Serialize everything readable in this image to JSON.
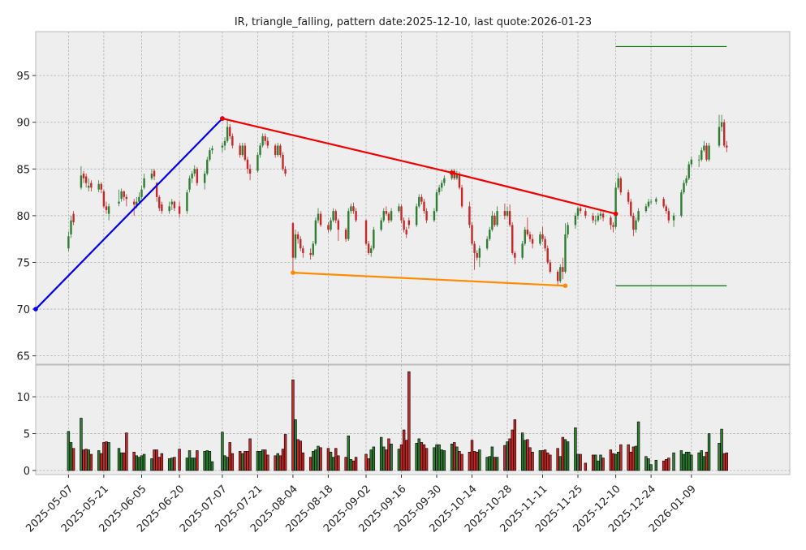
{
  "chart_data": {
    "type": "candlestick",
    "title": "IR, triangle_falling, pattern date:2025-12-10, last quote:2026-01-23",
    "xlim": [
      "2025-04-24",
      "2026-02-17"
    ],
    "xticks": [
      "2025-05-07",
      "2025-05-21",
      "2025-06-05",
      "2025-06-20",
      "2025-07-07",
      "2025-07-21",
      "2025-08-04",
      "2025-08-18",
      "2025-09-02",
      "2025-09-16",
      "2025-09-30",
      "2025-10-14",
      "2025-10-28",
      "2025-11-11",
      "2025-11-25",
      "2025-12-10",
      "2025-12-24",
      "2026-01-09"
    ],
    "ylim": [
      64.1,
      99.7
    ],
    "yticks": [
      65,
      70,
      75,
      80,
      85,
      90,
      95
    ],
    "volume_ylim": [
      -0.55,
      14.3
    ],
    "volume_yticks": [
      0,
      5,
      10
    ],
    "grid": true,
    "up_color": "#2e7d32",
    "down_color": "#c62828",
    "x": [
      "2025-05-07",
      "2025-05-08",
      "2025-05-09",
      "2025-05-12",
      "2025-05-13",
      "2025-05-14",
      "2025-05-15",
      "2025-05-16",
      "2025-05-19",
      "2025-05-20",
      "2025-05-21",
      "2025-05-22",
      "2025-05-23",
      "2025-05-27",
      "2025-05-28",
      "2025-05-29",
      "2025-05-30",
      "2025-06-02",
      "2025-06-03",
      "2025-06-04",
      "2025-06-05",
      "2025-06-06",
      "2025-06-09",
      "2025-06-10",
      "2025-06-11",
      "2025-06-12",
      "2025-06-13",
      "2025-06-16",
      "2025-06-17",
      "2025-06-18",
      "2025-06-20",
      "2025-06-23",
      "2025-06-24",
      "2025-06-25",
      "2025-06-26",
      "2025-06-27",
      "2025-06-30",
      "2025-07-01",
      "2025-07-02",
      "2025-07-03",
      "2025-07-07",
      "2025-07-08",
      "2025-07-09",
      "2025-07-10",
      "2025-07-11",
      "2025-07-14",
      "2025-07-15",
      "2025-07-16",
      "2025-07-17",
      "2025-07-18",
      "2025-07-21",
      "2025-07-22",
      "2025-07-23",
      "2025-07-24",
      "2025-07-25",
      "2025-07-28",
      "2025-07-29",
      "2025-07-30",
      "2025-07-31",
      "2025-08-01",
      "2025-08-04",
      "2025-08-05",
      "2025-08-06",
      "2025-08-07",
      "2025-08-08",
      "2025-08-11",
      "2025-08-12",
      "2025-08-13",
      "2025-08-14",
      "2025-08-15",
      "2025-08-18",
      "2025-08-19",
      "2025-08-20",
      "2025-08-21",
      "2025-08-22",
      "2025-08-25",
      "2025-08-26",
      "2025-08-27",
      "2025-08-28",
      "2025-08-29",
      "2025-09-02",
      "2025-09-03",
      "2025-09-04",
      "2025-09-05",
      "2025-09-08",
      "2025-09-09",
      "2025-09-10",
      "2025-09-11",
      "2025-09-12",
      "2025-09-15",
      "2025-09-16",
      "2025-09-17",
      "2025-09-18",
      "2025-09-19",
      "2025-09-22",
      "2025-09-23",
      "2025-09-24",
      "2025-09-25",
      "2025-09-26",
      "2025-09-29",
      "2025-09-30",
      "2025-10-01",
      "2025-10-02",
      "2025-10-03",
      "2025-10-06",
      "2025-10-07",
      "2025-10-08",
      "2025-10-09",
      "2025-10-10",
      "2025-10-13",
      "2025-10-14",
      "2025-10-15",
      "2025-10-16",
      "2025-10-17",
      "2025-10-20",
      "2025-10-21",
      "2025-10-22",
      "2025-10-23",
      "2025-10-24",
      "2025-10-27",
      "2025-10-28",
      "2025-10-29",
      "2025-10-30",
      "2025-10-31",
      "2025-11-03",
      "2025-11-04",
      "2025-11-05",
      "2025-11-06",
      "2025-11-07",
      "2025-11-10",
      "2025-11-11",
      "2025-11-12",
      "2025-11-13",
      "2025-11-14",
      "2025-11-17",
      "2025-11-18",
      "2025-11-19",
      "2025-11-20",
      "2025-11-21",
      "2025-11-24",
      "2025-11-25",
      "2025-11-26",
      "2025-11-28",
      "2025-12-01",
      "2025-12-02",
      "2025-12-03",
      "2025-12-04",
      "2025-12-05",
      "2025-12-08",
      "2025-12-09",
      "2025-12-10",
      "2025-12-11",
      "2025-12-12",
      "2025-12-15",
      "2025-12-16",
      "2025-12-17",
      "2025-12-18",
      "2025-12-19",
      "2025-12-22",
      "2025-12-23",
      "2025-12-24",
      "2025-12-26",
      "2025-12-29",
      "2025-12-30",
      "2025-12-31",
      "2026-01-02",
      "2026-01-05",
      "2026-01-06",
      "2026-01-07",
      "2026-01-08",
      "2026-01-09",
      "2026-01-12",
      "2026-01-13",
      "2026-01-14",
      "2026-01-15",
      "2026-01-16",
      "2026-01-20",
      "2026-01-21",
      "2026-01-22",
      "2026-01-23"
    ],
    "open": [
      76.5,
      78.0,
      80.2,
      83.0,
      84.5,
      84.2,
      83.0,
      83.5,
      82.8,
      83.4,
      82.6,
      81.0,
      80.2,
      81.3,
      81.8,
      82.6,
      82.0,
      81.5,
      81.0,
      81.5,
      82.0,
      83.0,
      84.0,
      84.8,
      83.5,
      82.0,
      81.2,
      80.5,
      81.2,
      81.5,
      81.0,
      80.5,
      82.8,
      84.0,
      84.5,
      85.0,
      83.5,
      84.5,
      86.0,
      87.0,
      87.3,
      87.5,
      88.0,
      89.5,
      88.5,
      87.5,
      86.5,
      87.5,
      86.0,
      85.0,
      84.8,
      86.5,
      87.5,
      88.5,
      88.0,
      87.5,
      86.5,
      87.5,
      86.5,
      85.0,
      79.2,
      75.5,
      78.0,
      77.5,
      76.5,
      76.0,
      75.8,
      77.0,
      79.5,
      80.2,
      79.0,
      78.5,
      79.5,
      80.5,
      79.5,
      78.5,
      77.5,
      80.5,
      81.0,
      80.5,
      79.5,
      77.0,
      76.0,
      76.5,
      78.5,
      79.5,
      80.5,
      80.2,
      79.5,
      80.5,
      81.0,
      79.5,
      78.5,
      79.5,
      79.0,
      81.0,
      82.0,
      81.5,
      80.5,
      79.5,
      80.5,
      82.5,
      83.0,
      83.5,
      84.0,
      84.8,
      84.0,
      84.5,
      83.0,
      81.0,
      79.0,
      77.0,
      76.0,
      75.5,
      76.5,
      77.5,
      78.5,
      80.0,
      79.0,
      80.5,
      80.0,
      80.5,
      79.0,
      76.0,
      75.5,
      77.0,
      78.5,
      78.0,
      77.5,
      77.0,
      78.0,
      77.5,
      76.5,
      75.0,
      74.0,
      73.0,
      74.5,
      74.0,
      78.0,
      79.0,
      80.0,
      80.8,
      80.5,
      80.0,
      79.5,
      79.5,
      80.0,
      80.2,
      79.8,
      79.0,
      78.8,
      83.0,
      84.0,
      82.5,
      81.5,
      80.0,
      78.5,
      79.5,
      80.5,
      81.0,
      81.5,
      81.5,
      81.8,
      81.0,
      80.5,
      79.5,
      80.0,
      82.5,
      83.5,
      84.0,
      85.5,
      86.0,
      86.0,
      87.0,
      87.5,
      86.0,
      87.5,
      89.5,
      90.0,
      87.5
    ],
    "high": [
      78.3,
      80.0,
      80.5,
      85.3,
      84.8,
      84.5,
      84.0,
      83.8,
      83.8,
      83.6,
      82.8,
      81.5,
      81.3,
      82.8,
      82.9,
      82.7,
      82.3,
      81.8,
      82.0,
      82.5,
      83.2,
      84.5,
      85.0,
      85.0,
      83.6,
      82.2,
      81.5,
      81.5,
      81.8,
      81.6,
      81.5,
      82.8,
      84.3,
      84.8,
      85.4,
      85.2,
      84.8,
      86.3,
      87.3,
      87.5,
      87.8,
      88.4,
      90.4,
      89.8,
      88.8,
      87.8,
      87.8,
      87.8,
      86.3,
      85.5,
      86.8,
      87.8,
      88.8,
      88.8,
      88.4,
      87.7,
      87.8,
      87.7,
      86.8,
      85.3,
      79.3,
      78.5,
      78.3,
      77.8,
      76.8,
      76.5,
      77.3,
      79.8,
      80.8,
      80.5,
      79.3,
      79.8,
      80.8,
      80.7,
      79.7,
      78.7,
      80.8,
      81.3,
      81.4,
      80.8,
      79.6,
      77.3,
      76.8,
      78.8,
      79.8,
      80.8,
      81.0,
      80.4,
      80.8,
      81.3,
      81.2,
      79.8,
      78.8,
      79.8,
      81.3,
      82.3,
      82.3,
      81.8,
      80.8,
      80.8,
      82.8,
      83.3,
      83.8,
      84.3,
      85.0,
      85.0,
      84.8,
      84.7,
      83.3,
      81.5,
      79.3,
      77.3,
      76.3,
      76.8,
      77.8,
      78.8,
      80.5,
      80.3,
      81.0,
      81.3,
      81.0,
      81.2,
      79.3,
      76.2,
      77.3,
      78.8,
      79.8,
      78.3,
      78.0,
      78.3,
      78.8,
      77.8,
      76.8,
      75.3,
      74.2,
      74.8,
      75.5,
      79.2,
      79.3,
      80.3,
      81.0,
      81.2,
      80.8,
      80.3,
      80.0,
      80.3,
      80.6,
      80.4,
      80.0,
      79.3,
      83.5,
      84.6,
      84.2,
      82.8,
      81.8,
      80.3,
      79.8,
      80.8,
      81.3,
      81.8,
      81.8,
      82.0,
      82.0,
      81.2,
      80.8,
      80.3,
      82.8,
      83.8,
      84.3,
      85.8,
      86.3,
      86.5,
      87.3,
      88.0,
      87.8,
      87.8,
      90.8,
      90.8,
      90.3,
      88.0
    ],
    "low": [
      76.2,
      77.6,
      79.0,
      82.8,
      83.5,
      83.0,
      82.6,
      82.6,
      82.5,
      82.4,
      80.8,
      80.2,
      79.5,
      81.0,
      81.5,
      81.6,
      81.0,
      80.0,
      80.8,
      81.2,
      81.8,
      82.8,
      83.8,
      83.8,
      81.5,
      80.5,
      80.2,
      80.2,
      80.6,
      80.5,
      79.8,
      80.2,
      82.5,
      83.5,
      84.2,
      83.2,
      82.8,
      84.3,
      85.8,
      86.6,
      86.8,
      87.0,
      87.8,
      88.2,
      87.2,
      86.2,
      86.3,
      85.8,
      84.5,
      83.8,
      84.6,
      86.2,
      87.3,
      87.6,
      87.2,
      86.2,
      86.3,
      86.2,
      84.8,
      84.2,
      74.0,
      75.3,
      77.0,
      76.2,
      75.5,
      75.3,
      75.6,
      76.8,
      79.2,
      78.8,
      78.2,
      78.3,
      79.3,
      79.2,
      77.3,
      77.2,
      77.3,
      80.2,
      80.2,
      79.3,
      76.8,
      75.8,
      75.6,
      76.3,
      78.3,
      79.3,
      80.0,
      79.2,
      79.3,
      80.3,
      79.2,
      78.2,
      77.6,
      78.6,
      78.8,
      80.8,
      81.2,
      80.2,
      79.2,
      79.3,
      80.3,
      82.2,
      82.6,
      83.2,
      83.8,
      83.8,
      83.8,
      82.8,
      80.8,
      78.7,
      76.8,
      74.2,
      75.2,
      74.5,
      76.3,
      77.3,
      78.3,
      78.8,
      78.8,
      79.6,
      79.8,
      78.8,
      75.8,
      74.8,
      75.3,
      76.8,
      77.8,
      77.2,
      76.5,
      76.8,
      77.2,
      76.2,
      74.8,
      73.8,
      72.5,
      72.8,
      73.2,
      73.8,
      77.6,
      78.6,
      79.6,
      80.2,
      79.7,
      79.2,
      79.0,
      79.3,
      79.6,
      79.4,
      78.5,
      78.2,
      78.6,
      82.8,
      82.2,
      81.2,
      79.8,
      77.8,
      78.2,
      79.3,
      80.3,
      80.8,
      81.2,
      81.2,
      80.8,
      80.2,
      79.2,
      78.8,
      79.8,
      82.3,
      83.2,
      83.8,
      85.2,
      85.2,
      85.8,
      86.8,
      85.8,
      85.8,
      87.3,
      89.0,
      87.3,
      86.8
    ],
    "close": [
      77.8,
      79.5,
      79.3,
      84.3,
      84.0,
      83.5,
      83.2,
      83.0,
      83.4,
      82.8,
      81.0,
      80.6,
      81.0,
      81.5,
      82.6,
      82.0,
      81.8,
      81.2,
      81.5,
      82.0,
      82.8,
      84.0,
      84.5,
      84.2,
      82.0,
      80.8,
      80.5,
      81.0,
      81.5,
      80.8,
      80.2,
      82.5,
      84.0,
      84.5,
      85.0,
      83.5,
      84.5,
      86.0,
      87.0,
      87.2,
      87.5,
      88.0,
      89.5,
      88.5,
      87.5,
      86.5,
      87.5,
      86.0,
      85.0,
      84.5,
      86.5,
      87.5,
      88.5,
      88.0,
      87.5,
      86.5,
      87.5,
      86.5,
      85.0,
      84.5,
      75.5,
      78.0,
      77.5,
      76.5,
      76.0,
      75.8,
      77.0,
      79.5,
      80.2,
      79.0,
      78.5,
      79.5,
      80.5,
      79.5,
      78.5,
      77.5,
      80.5,
      81.0,
      80.5,
      79.5,
      77.0,
      76.0,
      76.5,
      78.5,
      79.5,
      80.5,
      80.2,
      79.5,
      80.5,
      81.0,
      79.5,
      78.5,
      78.0,
      79.0,
      81.0,
      82.0,
      81.5,
      80.5,
      79.5,
      80.5,
      82.5,
      83.0,
      83.5,
      84.0,
      84.8,
      84.0,
      84.5,
      83.0,
      81.0,
      79.0,
      77.0,
      76.0,
      75.5,
      76.5,
      77.5,
      78.5,
      80.0,
      79.0,
      80.5,
      80.0,
      80.5,
      79.0,
      76.0,
      75.5,
      77.0,
      78.5,
      78.0,
      77.5,
      77.0,
      78.0,
      77.5,
      76.5,
      75.0,
      74.0,
      73.0,
      74.5,
      74.0,
      78.0,
      79.0,
      80.0,
      80.8,
      80.5,
      80.0,
      79.5,
      79.5,
      80.0,
      80.2,
      79.8,
      79.0,
      78.8,
      83.0,
      84.0,
      82.5,
      81.5,
      80.0,
      78.5,
      79.5,
      80.5,
      81.0,
      81.5,
      81.5,
      81.8,
      81.0,
      80.5,
      79.5,
      80.0,
      82.5,
      83.5,
      84.0,
      85.5,
      86.0,
      86.0,
      87.0,
      87.5,
      86.0,
      87.5,
      89.5,
      90.0,
      87.5,
      87.3
    ],
    "volume": [
      5.3,
      3.8,
      3.0,
      7.1,
      2.8,
      2.9,
      2.8,
      2.2,
      2.7,
      2.3,
      3.8,
      3.9,
      3.8,
      3.0,
      2.4,
      2.4,
      5.1,
      2.5,
      2.0,
      1.8,
      2.0,
      2.2,
      1.6,
      2.8,
      2.8,
      1.8,
      2.3,
      1.6,
      1.7,
      1.8,
      2.9,
      1.7,
      2.7,
      1.7,
      1.7,
      2.7,
      2.6,
      2.7,
      2.6,
      1.2,
      5.2,
      2.0,
      1.8,
      3.8,
      2.3,
      2.6,
      2.3,
      2.6,
      2.6,
      4.3,
      2.6,
      2.6,
      2.8,
      2.8,
      2.1,
      2.0,
      2.3,
      2.0,
      2.9,
      4.9,
      12.3,
      6.9,
      4.2,
      4.0,
      2.4,
      1.8,
      2.6,
      2.8,
      3.3,
      3.1,
      3.0,
      2.5,
      1.8,
      3.0,
      2.0,
      1.8,
      4.7,
      1.5,
      1.3,
      1.8,
      2.2,
      1.6,
      2.8,
      3.2,
      4.5,
      3.2,
      2.8,
      4.3,
      3.6,
      2.9,
      3.5,
      5.5,
      4.1,
      13.4,
      3.7,
      4.3,
      3.8,
      3.5,
      3.0,
      3.1,
      3.5,
      3.5,
      2.8,
      2.7,
      3.6,
      3.8,
      3.2,
      2.6,
      2.2,
      2.5,
      4.1,
      2.6,
      2.5,
      2.8,
      1.8,
      1.9,
      3.2,
      1.8,
      1.8,
      3.4,
      3.9,
      4.3,
      5.5,
      6.9,
      5.1,
      4.1,
      4.2,
      3.1,
      2.5,
      2.7,
      2.7,
      2.8,
      2.4,
      2.1,
      3.0,
      1.9,
      4.5,
      4.2,
      3.9,
      5.8,
      2.2,
      2.2,
      1.0,
      2.1,
      2.1,
      1.3,
      2.1,
      1.7,
      2.8,
      2.3,
      2.2,
      2.5,
      3.5,
      3.5,
      2.5,
      3.2,
      3.3,
      6.6,
      1.9,
      1.6,
      0.8,
      1.4,
      1.3,
      1.5,
      1.7,
      2.4,
      2.7,
      2.2,
      2.5,
      2.5,
      2.1,
      2.4,
      2.7,
      1.9,
      2.5,
      5.0,
      3.7,
      5.6,
      2.3,
      2.4
    ],
    "lines": [
      {
        "color": "#0000ee",
        "markers": true,
        "x": [
          "2025-04-24",
          "2025-07-07"
        ],
        "y": [
          70.0,
          90.4
        ]
      },
      {
        "color": "#ee0000",
        "markers": true,
        "x": [
          "2025-07-07",
          "2025-10-06",
          "2025-12-10"
        ],
        "y": [
          90.4,
          84.6,
          80.2
        ]
      },
      {
        "color": "#ff8c00",
        "markers": true,
        "x": [
          "2025-08-04",
          "2025-11-20"
        ],
        "y": [
          73.9,
          72.5
        ]
      },
      {
        "color": "#007000",
        "markers": false,
        "x": [
          "2025-12-10",
          "2026-01-23"
        ],
        "y": [
          98.1,
          98.1
        ]
      },
      {
        "color": "#007000",
        "markers": false,
        "x": [
          "2025-12-10",
          "2026-01-23"
        ],
        "y": [
          72.5,
          72.5
        ]
      }
    ]
  }
}
